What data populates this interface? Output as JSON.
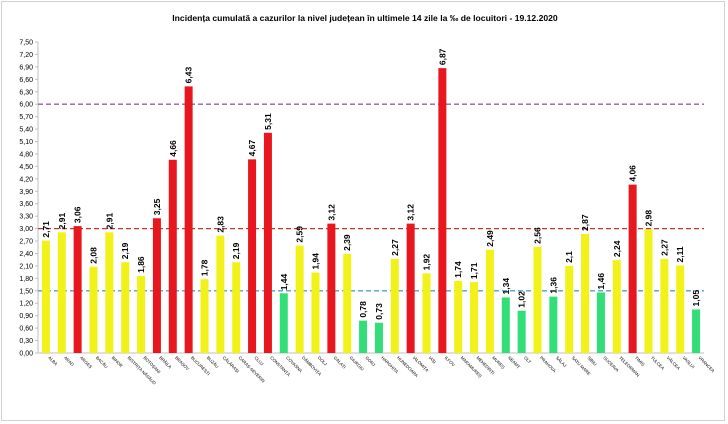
{
  "chart_data": {
    "type": "bar",
    "title": "Incidența cumulată a cazurilor la nivel județean în ultimele 14 zile la ‰ de locuitori - 19.12.2020",
    "xlabel": "",
    "ylabel": "",
    "ylim": [
      0,
      7.5
    ],
    "ytick_step": 0.3,
    "grid": false,
    "legend": "none",
    "categories": [
      "ALBA",
      "ARAD",
      "ARGEȘ",
      "BACĂU",
      "BIHOR",
      "BISTRIȚA NĂSĂUD",
      "BOTOȘANI",
      "BRĂILA",
      "BRAȘOV",
      "BUCUREȘTI",
      "BUZĂU",
      "CĂLĂRAȘI",
      "CARAȘ-SEVERIN",
      "CLUJ",
      "CONSTANȚA",
      "COVASNA",
      "DÂMBOVIȚA",
      "DOLJ",
      "GALAȚI",
      "GIURGIU",
      "GORJ",
      "HARGHITA",
      "HUNEDOARA",
      "IALOMIȚA",
      "IAȘI",
      "ILFOV",
      "MARAMUREȘ",
      "MEHEDINȚI",
      "MUREȘ",
      "NEAMȚ",
      "OLT",
      "PRAHOVA",
      "SĂLAJ",
      "SATU MARE",
      "SIBIU",
      "SUCEAVA",
      "TELEORMAN",
      "TIMIȘ",
      "TULCEA",
      "VÂLCEA",
      "VASLUI",
      "VRANCEA"
    ],
    "values": [
      2.71,
      2.91,
      3.06,
      2.08,
      2.91,
      2.19,
      1.86,
      3.25,
      4.66,
      6.43,
      1.78,
      2.83,
      2.19,
      4.67,
      5.31,
      1.44,
      2.59,
      1.94,
      3.12,
      2.39,
      0.78,
      0.73,
      2.27,
      3.12,
      1.92,
      6.87,
      1.74,
      1.71,
      2.49,
      1.34,
      1.02,
      2.56,
      1.36,
      2.1,
      2.87,
      1.46,
      2.24,
      4.06,
      2.98,
      2.27,
      2.11,
      1.05
    ],
    "value_labels": [
      "2,71",
      "2,91",
      "3,06",
      "2,08",
      "2,91",
      "2,19",
      "1,86",
      "3,25",
      "4,66",
      "6,43",
      "1,78",
      "2,83",
      "2,19",
      "4,67",
      "5,31",
      "1,44",
      "2,59",
      "1,94",
      "3,12",
      "2,39",
      "0,78",
      "0,73",
      "2,27",
      "3,12",
      "1,92",
      "6,87",
      "1,74",
      "1,71",
      "2,49",
      "1,34",
      "1,02",
      "2,56",
      "1,36",
      "2,1",
      "2,87",
      "1,46",
      "2,24",
      "4,06",
      "2,98",
      "2,27",
      "2,11",
      "1,05"
    ],
    "thresholds": [
      {
        "value": 1.5,
        "color": "#4fa3d1"
      },
      {
        "value": 3.0,
        "color": "#c0392b"
      },
      {
        "value": 6.0,
        "color": "#9b59b6"
      }
    ],
    "colors": {
      "low": "#33dd77",
      "mid": "#f2f21a",
      "high": "#e8171f",
      "axis": "#bfbfbf",
      "text": "#000000"
    }
  }
}
